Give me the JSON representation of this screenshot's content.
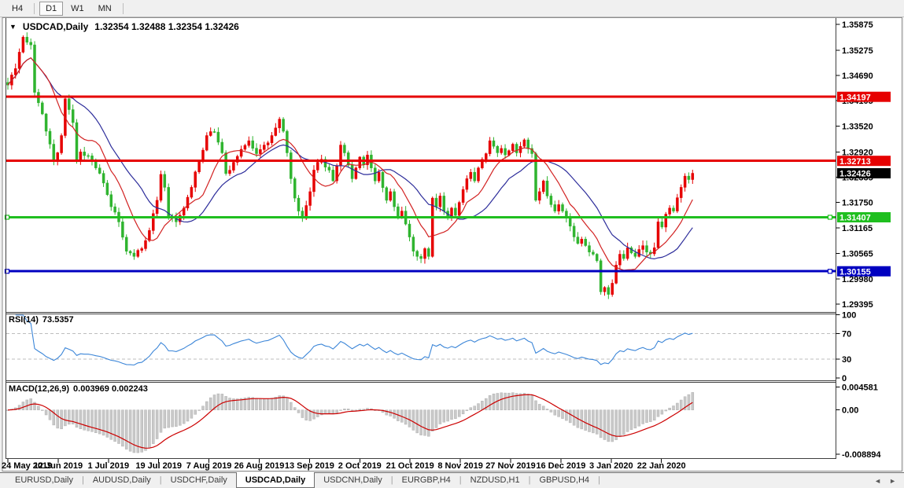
{
  "toolbar": {
    "timeframes": [
      {
        "label": "H4",
        "active": false
      },
      {
        "label": "D1",
        "active": true
      },
      {
        "label": "W1",
        "active": false
      },
      {
        "label": "MN",
        "active": false
      }
    ]
  },
  "chart": {
    "symbol": "USDCAD,Daily",
    "ohlc": "1.32354 1.32488 1.32354 1.32426",
    "dropdown_icon": "▼"
  },
  "indicators": {
    "rsi": {
      "name": "RSI(14)",
      "value": "73.5357"
    },
    "macd": {
      "name": "MACD(12,26,9)",
      "values": "0.003969 0.002243"
    }
  },
  "price_axis": {
    "ticks": [
      "1.35875",
      "1.35275",
      "1.34690",
      "1.34105",
      "1.33520",
      "1.32920",
      "1.32335",
      "1.31750",
      "1.31165",
      "1.30565",
      "1.29980",
      "1.29395"
    ],
    "badges": [
      {
        "text": "1.34197",
        "price": 1.34197,
        "bg": "#e60000"
      },
      {
        "text": "1.32713",
        "price": 1.32713,
        "bg": "#e60000"
      },
      {
        "text": "1.32426",
        "price": 1.32426,
        "bg": "#000000"
      },
      {
        "text": "1.31407",
        "price": 1.31407,
        "bg": "#1fbf1f"
      },
      {
        "text": "1.30155",
        "price": 1.30155,
        "bg": "#0000c0"
      }
    ]
  },
  "rsi_axis": [
    {
      "value": 100,
      "label": "100"
    },
    {
      "value": 70,
      "label": "70"
    },
    {
      "value": 30,
      "label": "30"
    },
    {
      "value": 0,
      "label": "0"
    }
  ],
  "macd_axis": [
    {
      "value": 0.004581,
      "label": "0.004581"
    },
    {
      "value": 0,
      "label": "0.00"
    },
    {
      "value": -0.008894,
      "label": "-0.008894"
    }
  ],
  "date_axis": [
    "24 May 2019",
    "12 Jun 2019",
    "1 Jul 2019",
    "19 Jul 2019",
    "7 Aug 2019",
    "26 Aug 2019",
    "13 Sep 2019",
    "2 Oct 2019",
    "21 Oct 2019",
    "8 Nov 2019",
    "27 Nov 2019",
    "16 Dec 2019",
    "3 Jan 2020",
    "22 Jan 2020"
  ],
  "bottom_tabs": [
    {
      "label": "EURUSD,Daily",
      "active": false
    },
    {
      "label": "AUDUSD,Daily",
      "active": false
    },
    {
      "label": "USDCHF,Daily",
      "active": false
    },
    {
      "label": "USDCAD,Daily",
      "active": true
    },
    {
      "label": "USDCNH,Daily",
      "active": false
    },
    {
      "label": "EURGBP,H4",
      "active": false
    },
    {
      "label": "NZDUSD,H1",
      "active": false
    },
    {
      "label": "GBPUSD,H4",
      "active": false
    }
  ],
  "tab_scroller": {
    "left": "◄",
    "right": "►"
  },
  "colors": {
    "bull": "#e60000",
    "bear": "#2fb42f",
    "ma_fast": "#d22222",
    "ma_slow": "#2d2d9b",
    "line_red": "#e60000",
    "line_green": "#1fbf1f",
    "line_blue": "#0000c0",
    "rsi": "#3c86d8",
    "rsi_level": "#bdbdbd",
    "macd_bar": "#c9c9c9",
    "macd_signal": "#cc0000",
    "badge_current": "#000000"
  },
  "chart_data": {
    "type": "candlestick",
    "symbol": "USDCAD",
    "timeframe": "Daily",
    "bars": 180,
    "price_range": [
      1.29395,
      1.35875
    ],
    "current": {
      "open": 1.32354,
      "high": 1.32488,
      "low": 1.32354,
      "close": 1.32426
    },
    "close_anchors": [
      [
        0,
        1.3447
      ],
      [
        2,
        1.3485
      ],
      [
        4,
        1.3558
      ],
      [
        6,
        1.354
      ],
      [
        7,
        1.343
      ],
      [
        9,
        1.338
      ],
      [
        11,
        1.331
      ],
      [
        12,
        1.327
      ],
      [
        13,
        1.329
      ],
      [
        14,
        1.333
      ],
      [
        15,
        1.3415
      ],
      [
        16,
        1.339
      ],
      [
        17,
        1.336
      ],
      [
        18,
        1.327
      ],
      [
        19,
        1.3292
      ],
      [
        21,
        1.3283
      ],
      [
        23,
        1.3255
      ],
      [
        25,
        1.322
      ],
      [
        27,
        1.3165
      ],
      [
        29,
        1.313
      ],
      [
        31,
        1.3062
      ],
      [
        33,
        1.305
      ],
      [
        35,
        1.3068
      ],
      [
        37,
        1.311
      ],
      [
        39,
        1.318
      ],
      [
        40,
        1.324
      ],
      [
        41,
        1.321
      ],
      [
        42,
        1.314
      ],
      [
        44,
        1.313
      ],
      [
        46,
        1.3162
      ],
      [
        48,
        1.321
      ],
      [
        50,
        1.327
      ],
      [
        52,
        1.333
      ],
      [
        54,
        1.3338
      ],
      [
        56,
        1.329
      ],
      [
        57,
        1.3242
      ],
      [
        59,
        1.3268
      ],
      [
        61,
        1.3298
      ],
      [
        63,
        1.3318
      ],
      [
        65,
        1.3288
      ],
      [
        67,
        1.3308
      ],
      [
        69,
        1.333
      ],
      [
        71,
        1.3368
      ],
      [
        72,
        1.334
      ],
      [
        73,
        1.329
      ],
      [
        74,
        1.323
      ],
      [
        75,
        1.3185
      ],
      [
        76,
        1.3155
      ],
      [
        77,
        1.3138
      ],
      [
        78,
        1.3168
      ],
      [
        79,
        1.32
      ],
      [
        80,
        1.325
      ],
      [
        82,
        1.3275
      ],
      [
        84,
        1.325
      ],
      [
        85,
        1.3225
      ],
      [
        86,
        1.326
      ],
      [
        87,
        1.3308
      ],
      [
        88,
        1.329
      ],
      [
        90,
        1.323
      ],
      [
        91,
        1.3255
      ],
      [
        92,
        1.328
      ],
      [
        93,
        1.3262
      ],
      [
        94,
        1.3285
      ],
      [
        95,
        1.3255
      ],
      [
        96,
        1.3225
      ],
      [
        97,
        1.3245
      ],
      [
        99,
        1.318
      ],
      [
        100,
        1.32
      ],
      [
        101,
        1.3165
      ],
      [
        102,
        1.314
      ],
      [
        103,
        1.3155
      ],
      [
        104,
        1.3125
      ],
      [
        105,
        1.3095
      ],
      [
        106,
        1.3062
      ],
      [
        107,
        1.305
      ],
      [
        108,
        1.3045
      ],
      [
        109,
        1.3068
      ],
      [
        110,
        1.305
      ],
      [
        111,
        1.3185
      ],
      [
        112,
        1.3165
      ],
      [
        113,
        1.319
      ],
      [
        114,
        1.3155
      ],
      [
        115,
        1.314
      ],
      [
        116,
        1.3162
      ],
      [
        117,
        1.3145
      ],
      [
        118,
        1.3175
      ],
      [
        119,
        1.3205
      ],
      [
        120,
        1.323
      ],
      [
        121,
        1.3245
      ],
      [
        122,
        1.3225
      ],
      [
        123,
        1.3255
      ],
      [
        124,
        1.3275
      ],
      [
        125,
        1.3288
      ],
      [
        126,
        1.3318
      ],
      [
        127,
        1.3305
      ],
      [
        128,
        1.329
      ],
      [
        129,
        1.33
      ],
      [
        130,
        1.3285
      ],
      [
        131,
        1.3295
      ],
      [
        132,
        1.331
      ],
      [
        133,
        1.329
      ],
      [
        134,
        1.3305
      ],
      [
        135,
        1.332
      ],
      [
        136,
        1.33
      ],
      [
        137,
        1.3288
      ],
      [
        138,
        1.318
      ],
      [
        139,
        1.32
      ],
      [
        140,
        1.3225
      ],
      [
        141,
        1.319
      ],
      [
        142,
        1.317
      ],
      [
        143,
        1.3155
      ],
      [
        144,
        1.317
      ],
      [
        145,
        1.3155
      ],
      [
        146,
        1.314
      ],
      [
        147,
        1.312
      ],
      [
        148,
        1.3095
      ],
      [
        149,
        1.308
      ],
      [
        150,
        1.309
      ],
      [
        151,
        1.3075
      ],
      [
        152,
        1.306
      ],
      [
        153,
        1.3055
      ],
      [
        154,
        1.304
      ],
      [
        155,
        1.2968
      ],
      [
        156,
        1.2978
      ],
      [
        157,
        1.2962
      ],
      [
        158,
        1.2988
      ],
      [
        159,
        1.303
      ],
      [
        160,
        1.3055
      ],
      [
        161,
        1.3045
      ],
      [
        162,
        1.307
      ],
      [
        163,
        1.3058
      ],
      [
        164,
        1.305
      ],
      [
        165,
        1.3066
      ],
      [
        166,
        1.3075
      ],
      [
        167,
        1.306
      ],
      [
        168,
        1.3056
      ],
      [
        169,
        1.307
      ],
      [
        170,
        1.313
      ],
      [
        171,
        1.3118
      ],
      [
        172,
        1.3148
      ],
      [
        173,
        1.3162
      ],
      [
        174,
        1.3155
      ],
      [
        175,
        1.3186
      ],
      [
        176,
        1.321
      ],
      [
        177,
        1.3236
      ],
      [
        178,
        1.3228
      ],
      [
        179,
        1.32426
      ]
    ],
    "moving_averages": [
      {
        "period": 10,
        "color": "#d22222"
      },
      {
        "period": 21,
        "color": "#2d2d9b"
      }
    ],
    "horizontal_lines": [
      {
        "price": 1.34197,
        "color": "#e60000",
        "handles": false
      },
      {
        "price": 1.32713,
        "color": "#e60000",
        "handles": false
      },
      {
        "price": 1.31407,
        "color": "#1fbf1f",
        "handles": true
      },
      {
        "price": 1.30155,
        "color": "#0000c0",
        "handles": true
      }
    ],
    "rsi": {
      "period": 14,
      "current": 73.5357,
      "levels": [
        70,
        30
      ],
      "range": [
        0,
        100
      ]
    },
    "macd": {
      "fast": 12,
      "slow": 26,
      "signal": 9,
      "current": [
        0.003969,
        0.002243
      ],
      "range": [
        -0.008894,
        0.004581
      ]
    }
  }
}
